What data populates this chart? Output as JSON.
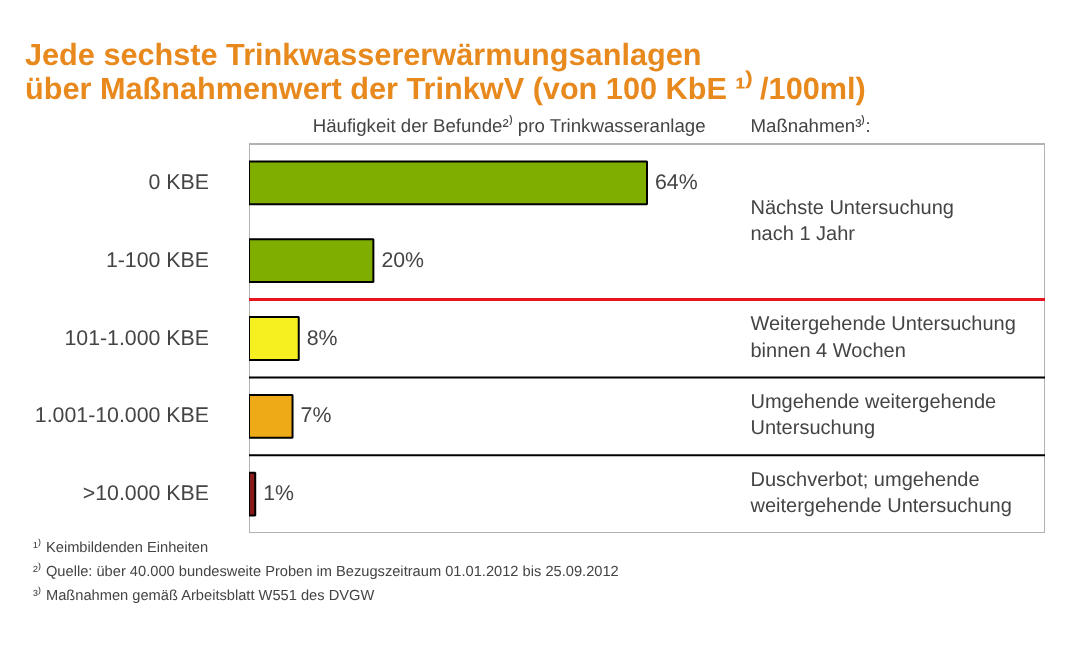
{
  "chart_data": {
    "type": "bar",
    "orientation": "horizontal",
    "title": "Jede sechste Trinkwassererwärmungsanlagen\nüber Maßnahmenwert  der TrinkwV (von 100 KbE ¹⁾ /100ml)",
    "xlabel": "Häufigkeit der Befunde²⁾ pro Trinkwasseranlage",
    "categories": [
      "0 KBE",
      "1-100 KBE",
      "101-1.000 KBE",
      "1.001-10.000 KBE",
      ">10.000 KBE"
    ],
    "values": [
      64,
      20,
      8,
      7,
      1
    ],
    "colors": [
      "#7fae00",
      "#7fae00",
      "#f7f020",
      "#efaa18",
      "#8b1a1a"
    ],
    "value_labels": [
      "64%",
      "20%",
      "8%",
      "7%",
      "1%"
    ],
    "grid": false,
    "legend": false,
    "ref_lines": [
      {
        "axis": "y",
        "value": "1-100 KBE",
        "color": "#e8141e"
      },
      {
        "axis": "y",
        "value": "101-1.000 KBE",
        "color": "#000000"
      },
      {
        "axis": "y",
        "value": "1.001-10.000 KBE",
        "color": "#000000"
      }
    ],
    "annotations": [
      "Maßnahmen³⁾:",
      "Nächste Untersuchung\nnach 1 Jahr",
      "Weitergehende Untersuchung\nbinnen 4 Wochen",
      "Umgehende weitergehende\nUntersuchung",
      "Duschverbot; umgehende\nweitergehende Untersuchung",
      "¹⁾ Keimbildenden Einheiten",
      "²⁾ Quelle: über 40.000 bundesweite Proben im Bezugszeitraum 01.01.2012 bis 25.09.2012",
      "³⁾ Maßnahmen gemäß Arbeitsblatt W551 des DVGW"
    ]
  }
}
